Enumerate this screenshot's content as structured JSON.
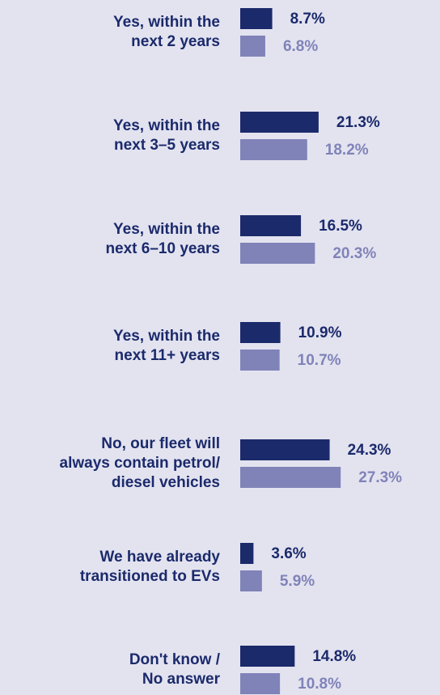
{
  "chart_data": {
    "type": "bar",
    "orientation": "horizontal",
    "categories": [
      [
        "Yes, within the",
        "next 2 years"
      ],
      [
        "Yes, within the",
        "next 3–5 years"
      ],
      [
        "Yes, within the",
        "next 6–10 years"
      ],
      [
        "Yes, within the",
        "next 11+ years"
      ],
      [
        "No, our fleet will",
        "always contain petrol/",
        "diesel vehicles"
      ],
      [
        "We have already",
        "transitioned to EVs"
      ],
      [
        "Don't know /",
        "No answer"
      ]
    ],
    "series": [
      {
        "color": "#1b2a6b",
        "values": [
          8.7,
          21.3,
          16.5,
          10.9,
          24.3,
          3.6,
          14.8
        ],
        "value_labels": [
          "8.7%",
          "21.3%",
          "16.5%",
          "10.9%",
          "24.3%",
          "3.6%",
          "14.8%"
        ]
      },
      {
        "color": "#8083b8",
        "values": [
          6.8,
          18.2,
          20.3,
          10.7,
          27.3,
          5.9,
          10.8
        ],
        "value_labels": [
          "6.8%",
          "18.2%",
          "20.3%",
          "10.7%",
          "27.3%",
          "5.9%",
          "10.8%"
        ]
      }
    ]
  }
}
